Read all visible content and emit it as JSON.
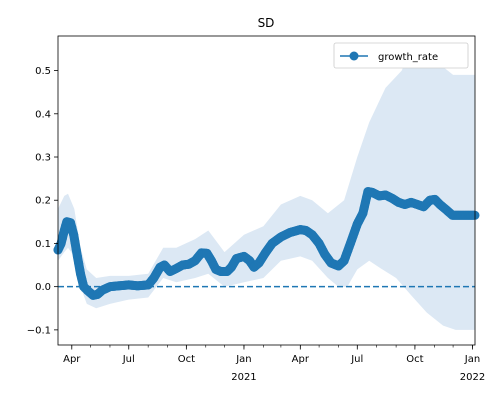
{
  "chart_data": {
    "type": "line",
    "title": "SD",
    "xlabel": "",
    "ylabel": "",
    "legend_position": "top-right",
    "grid": false,
    "colors": {
      "series": "#1f77b4",
      "band": "#dce8f4",
      "zero_line": "#1f77b4"
    },
    "x_range": [
      "2020-03-10",
      "2022-01-05"
    ],
    "ylim": [
      -0.135,
      0.58
    ],
    "x_ticks": [
      {
        "date": "2020-04-01",
        "label": "Apr",
        "sublabel": ""
      },
      {
        "date": "2020-07-01",
        "label": "Jul",
        "sublabel": ""
      },
      {
        "date": "2020-10-01",
        "label": "Oct",
        "sublabel": ""
      },
      {
        "date": "2021-01-01",
        "label": "Jan",
        "sublabel": "2021"
      },
      {
        "date": "2021-04-01",
        "label": "Apr",
        "sublabel": ""
      },
      {
        "date": "2021-07-01",
        "label": "Jul",
        "sublabel": ""
      },
      {
        "date": "2021-10-01",
        "label": "Oct",
        "sublabel": ""
      },
      {
        "date": "2022-01-01",
        "label": "Jan",
        "sublabel": "2022"
      }
    ],
    "y_ticks": [
      {
        "value": -0.1,
        "label": "−0.1"
      },
      {
        "value": 0.0,
        "label": "0.0"
      },
      {
        "value": 0.1,
        "label": "0.1"
      },
      {
        "value": 0.2,
        "label": "0.2"
      },
      {
        "value": 0.3,
        "label": "0.3"
      },
      {
        "value": 0.4,
        "label": "0.4"
      },
      {
        "value": 0.5,
        "label": "0.5"
      }
    ],
    "reference_line": {
      "y": 0.0,
      "style": "dashed"
    },
    "series": [
      {
        "name": "growth_rate",
        "marker": "circle",
        "points": [
          [
            "2020-03-10",
            0.085
          ],
          [
            "2020-03-15",
            0.1
          ],
          [
            "2020-03-20",
            0.13
          ],
          [
            "2020-03-24",
            0.15
          ],
          [
            "2020-03-30",
            0.148
          ],
          [
            "2020-04-04",
            0.12
          ],
          [
            "2020-04-10",
            0.07
          ],
          [
            "2020-04-15",
            0.03
          ],
          [
            "2020-04-20",
            0.0
          ],
          [
            "2020-04-27",
            -0.01
          ],
          [
            "2020-05-05",
            -0.02
          ],
          [
            "2020-05-12",
            -0.018
          ],
          [
            "2020-05-20",
            -0.008
          ],
          [
            "2020-06-01",
            0.0
          ],
          [
            "2020-06-15",
            0.002
          ],
          [
            "2020-07-01",
            0.004
          ],
          [
            "2020-07-15",
            0.002
          ],
          [
            "2020-08-01",
            0.004
          ],
          [
            "2020-08-10",
            0.02
          ],
          [
            "2020-08-20",
            0.045
          ],
          [
            "2020-08-27",
            0.05
          ],
          [
            "2020-09-05",
            0.035
          ],
          [
            "2020-09-15",
            0.042
          ],
          [
            "2020-09-25",
            0.05
          ],
          [
            "2020-10-05",
            0.052
          ],
          [
            "2020-10-15",
            0.06
          ],
          [
            "2020-10-25",
            0.078
          ],
          [
            "2020-11-03",
            0.077
          ],
          [
            "2020-11-10",
            0.06
          ],
          [
            "2020-11-17",
            0.04
          ],
          [
            "2020-11-25",
            0.035
          ],
          [
            "2020-12-05",
            0.035
          ],
          [
            "2020-12-12",
            0.045
          ],
          [
            "2020-12-20",
            0.065
          ],
          [
            "2021-01-01",
            0.07
          ],
          [
            "2021-01-10",
            0.06
          ],
          [
            "2021-01-17",
            0.045
          ],
          [
            "2021-01-25",
            0.055
          ],
          [
            "2021-02-05",
            0.08
          ],
          [
            "2021-02-15",
            0.1
          ],
          [
            "2021-03-01",
            0.115
          ],
          [
            "2021-03-15",
            0.125
          ],
          [
            "2021-04-01",
            0.132
          ],
          [
            "2021-04-10",
            0.13
          ],
          [
            "2021-04-20",
            0.12
          ],
          [
            "2021-05-01",
            0.1
          ],
          [
            "2021-05-10",
            0.075
          ],
          [
            "2021-05-20",
            0.055
          ],
          [
            "2021-06-01",
            0.048
          ],
          [
            "2021-06-10",
            0.06
          ],
          [
            "2021-06-20",
            0.1
          ],
          [
            "2021-07-01",
            0.145
          ],
          [
            "2021-07-10",
            0.17
          ],
          [
            "2021-07-18",
            0.22
          ],
          [
            "2021-07-25",
            0.218
          ],
          [
            "2021-08-05",
            0.21
          ],
          [
            "2021-08-15",
            0.212
          ],
          [
            "2021-08-25",
            0.205
          ],
          [
            "2021-09-05",
            0.195
          ],
          [
            "2021-09-15",
            0.19
          ],
          [
            "2021-09-25",
            0.195
          ],
          [
            "2021-10-05",
            0.19
          ],
          [
            "2021-10-15",
            0.185
          ],
          [
            "2021-10-25",
            0.2
          ],
          [
            "2021-11-02",
            0.202
          ],
          [
            "2021-11-10",
            0.19
          ],
          [
            "2021-11-20",
            0.178
          ],
          [
            "2021-11-30",
            0.165
          ],
          [
            "2021-12-10",
            0.165
          ],
          [
            "2021-12-20",
            0.165
          ],
          [
            "2022-01-05",
            0.165
          ]
        ],
        "band": {
          "upper": [
            [
              "2020-03-10",
              0.18
            ],
            [
              "2020-03-20",
              0.21
            ],
            [
              "2020-03-26",
              0.215
            ],
            [
              "2020-04-05",
              0.18
            ],
            [
              "2020-04-15",
              0.09
            ],
            [
              "2020-04-25",
              0.04
            ],
            [
              "2020-05-10",
              0.02
            ],
            [
              "2020-06-01",
              0.025
            ],
            [
              "2020-07-01",
              0.025
            ],
            [
              "2020-08-01",
              0.03
            ],
            [
              "2020-08-25",
              0.09
            ],
            [
              "2020-09-15",
              0.09
            ],
            [
              "2020-10-15",
              0.11
            ],
            [
              "2020-11-05",
              0.13
            ],
            [
              "2020-12-01",
              0.08
            ],
            [
              "2021-01-01",
              0.12
            ],
            [
              "2021-02-01",
              0.14
            ],
            [
              "2021-03-01",
              0.19
            ],
            [
              "2021-04-01",
              0.21
            ],
            [
              "2021-04-20",
              0.2
            ],
            [
              "2021-05-15",
              0.17
            ],
            [
              "2021-06-10",
              0.2
            ],
            [
              "2021-07-01",
              0.3
            ],
            [
              "2021-07-20",
              0.38
            ],
            [
              "2021-08-15",
              0.46
            ],
            [
              "2021-09-10",
              0.5
            ],
            [
              "2021-09-25",
              0.55
            ],
            [
              "2021-10-15",
              0.535
            ],
            [
              "2021-11-05",
              0.52
            ],
            [
              "2021-12-01",
              0.49
            ],
            [
              "2022-01-05",
              0.49
            ]
          ],
          "lower": [
            [
              "2020-03-10",
              0.06
            ],
            [
              "2020-03-20",
              0.08
            ],
            [
              "2020-03-26",
              0.09
            ],
            [
              "2020-04-05",
              0.07
            ],
            [
              "2020-04-15",
              0.0
            ],
            [
              "2020-04-25",
              -0.04
            ],
            [
              "2020-05-10",
              -0.05
            ],
            [
              "2020-06-01",
              -0.04
            ],
            [
              "2020-07-01",
              -0.03
            ],
            [
              "2020-08-01",
              -0.025
            ],
            [
              "2020-08-25",
              0.02
            ],
            [
              "2020-09-15",
              0.01
            ],
            [
              "2020-10-15",
              0.02
            ],
            [
              "2020-11-05",
              0.03
            ],
            [
              "2020-12-01",
              0.0
            ],
            [
              "2021-01-01",
              0.01
            ],
            [
              "2021-02-01",
              0.02
            ],
            [
              "2021-03-01",
              0.06
            ],
            [
              "2021-04-01",
              0.07
            ],
            [
              "2021-04-20",
              0.06
            ],
            [
              "2021-05-15",
              0.02
            ],
            [
              "2021-06-01",
              0.0
            ],
            [
              "2021-06-15",
              0.0
            ],
            [
              "2021-07-01",
              0.04
            ],
            [
              "2021-07-20",
              0.06
            ],
            [
              "2021-08-10",
              0.04
            ],
            [
              "2021-09-01",
              0.02
            ],
            [
              "2021-09-25",
              -0.02
            ],
            [
              "2021-10-20",
              -0.06
            ],
            [
              "2021-11-15",
              -0.09
            ],
            [
              "2021-12-05",
              -0.1
            ],
            [
              "2022-01-05",
              -0.1
            ]
          ]
        }
      }
    ]
  }
}
